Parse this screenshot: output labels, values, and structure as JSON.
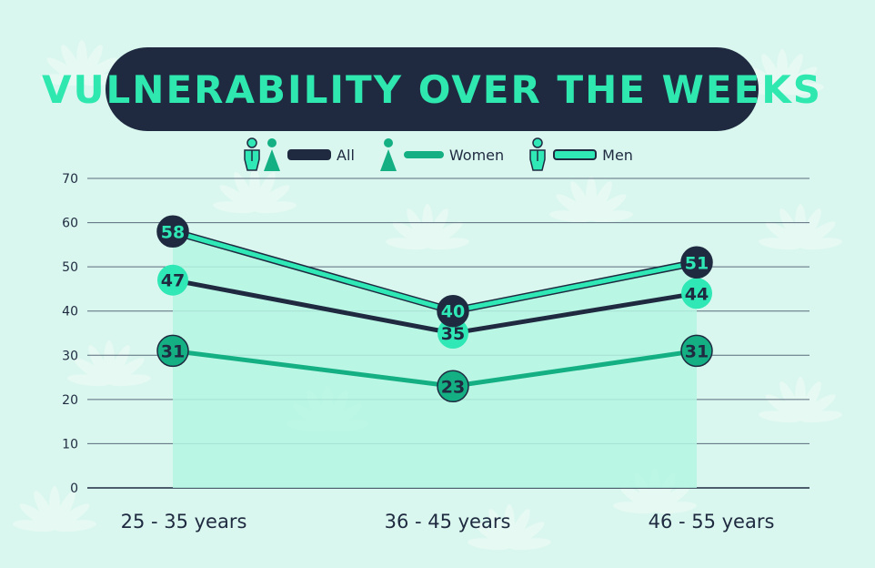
{
  "title": "VULNERABILITY OVER THE WEEKS",
  "legend": [
    {
      "label": "All",
      "icon": "man-and-woman-icon",
      "color": "#1f2a40"
    },
    {
      "label": "Women",
      "icon": "woman-icon",
      "color": "#14b084"
    },
    {
      "label": "Men",
      "icon": "man-icon",
      "color": "#2fe8b6"
    }
  ],
  "colors": {
    "background": "#d9f7ee",
    "title_bg": "#1f2a40",
    "title_text": "#2ee8b0",
    "all": "#1f2a40",
    "women": "#14b084",
    "men": "#2fe8b6",
    "area": "#b4f6e2"
  },
  "chart_data": {
    "type": "line",
    "title": "VULNERABILITY OVER THE WEEKS",
    "categories": [
      "25 - 35 years",
      "36 - 45 years",
      "46 - 55 years"
    ],
    "series": [
      {
        "name": "All",
        "values": [
          47,
          35,
          44
        ]
      },
      {
        "name": "Women",
        "values": [
          31,
          23,
          31
        ]
      },
      {
        "name": "Men",
        "values": [
          58,
          40,
          51
        ]
      }
    ],
    "ylim": [
      0,
      70
    ],
    "yticks": [
      0,
      10,
      20,
      30,
      40,
      50,
      60,
      70
    ],
    "grid": true,
    "legend": "top-center",
    "data_labels": true
  }
}
